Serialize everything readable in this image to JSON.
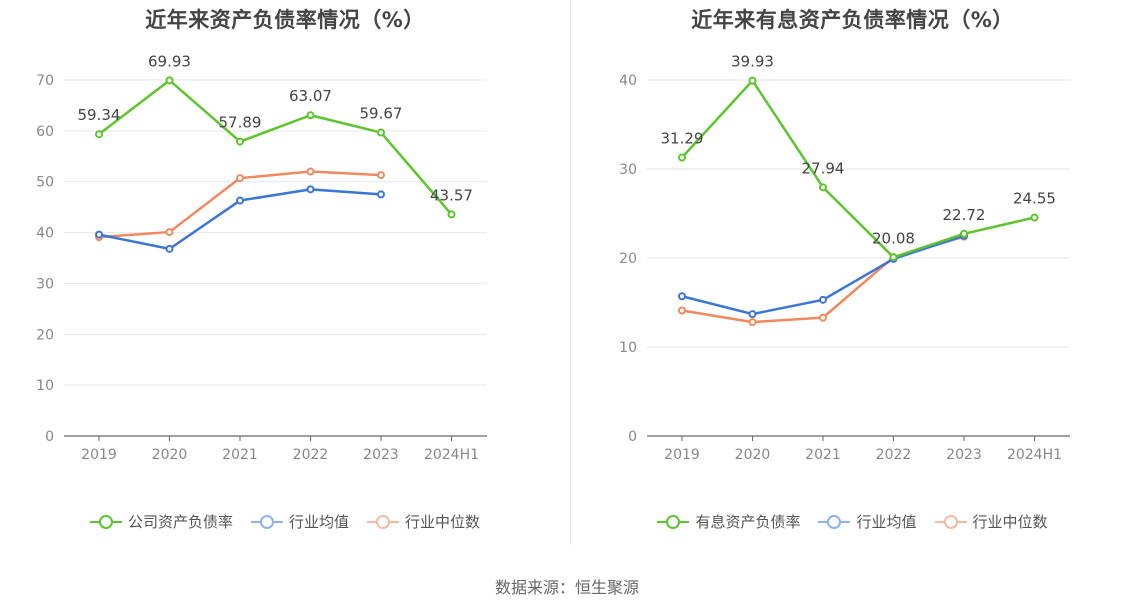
{
  "source_text": "数据来源：恒生聚源",
  "colors": {
    "green": "#5cc52d",
    "blue": "#3a75d8",
    "orange": "#f0895d",
    "legend_blue": "#8db3ee",
    "legend_orange": "#f7b99f",
    "grid": "#e6e6ec",
    "axis": "#666666",
    "tick_text": "#888888",
    "label_text": "#444444"
  },
  "chart_data": [
    {
      "type": "line",
      "title": "近年来资产负债率情况（%）",
      "xlabel": "",
      "ylabel": "",
      "categories": [
        "2019",
        "2020",
        "2021",
        "2022",
        "2023",
        "2024H1"
      ],
      "ylim": [
        0,
        70
      ],
      "yticks": [
        "0",
        "10",
        "20",
        "30",
        "40",
        "50",
        "60",
        "70"
      ],
      "grid": true,
      "legend_position": "bottom",
      "series": [
        {
          "name": "公司资产负债率",
          "color": "#5cc52d",
          "legend_color": "#5cc52d",
          "values": [
            59.34,
            69.93,
            57.89,
            63.07,
            59.67,
            43.57
          ],
          "labels": [
            "59.34",
            "69.93",
            "57.89",
            "63.07",
            "59.67",
            "43.57"
          ]
        },
        {
          "name": "行业均值",
          "color": "#3a75d8",
          "legend_color": "#8db3ee",
          "values": [
            39.6,
            36.8,
            46.3,
            48.5,
            47.5,
            null
          ],
          "labels": null
        },
        {
          "name": "行业中位数",
          "color": "#f0895d",
          "legend_color": "#f7b99f",
          "values": [
            39.1,
            40.1,
            50.7,
            52.0,
            51.3,
            null
          ],
          "labels": null
        }
      ]
    },
    {
      "type": "line",
      "title": "近年来有息资产负债率情况（%）",
      "xlabel": "",
      "ylabel": "",
      "categories": [
        "2019",
        "2020",
        "2021",
        "2022",
        "2023",
        "2024H1"
      ],
      "ylim": [
        0,
        40
      ],
      "yticks": [
        "0",
        "10",
        "20",
        "30",
        "40"
      ],
      "grid": true,
      "legend_position": "bottom",
      "series": [
        {
          "name": "有息资产负债率",
          "color": "#5cc52d",
          "legend_color": "#5cc52d",
          "values": [
            31.29,
            39.93,
            27.94,
            20.08,
            22.72,
            24.55
          ],
          "labels": [
            "31.29",
            "39.93",
            "27.94",
            "20.08",
            "22.72",
            "24.55"
          ]
        },
        {
          "name": "行业均值",
          "color": "#3a75d8",
          "legend_color": "#8db3ee",
          "values": [
            15.7,
            13.7,
            15.3,
            19.9,
            22.5,
            null
          ],
          "labels": null
        },
        {
          "name": "行业中位数",
          "color": "#f0895d",
          "legend_color": "#f7b99f",
          "values": [
            14.1,
            12.8,
            13.3,
            20.1,
            22.4,
            null
          ],
          "labels": null
        }
      ]
    }
  ]
}
